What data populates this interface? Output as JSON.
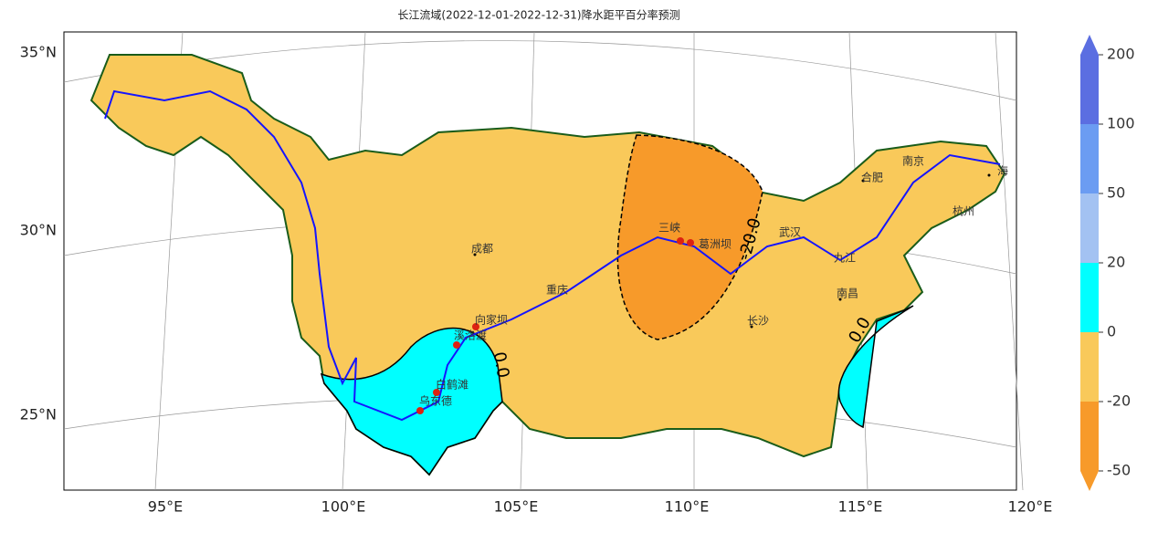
{
  "title": "长江流域(2022-12-01-2022-12-31)降水距平百分率预测",
  "lon_ticks": [
    "95°E",
    "100°E",
    "105°E",
    "110°E",
    "115°E",
    "120°E"
  ],
  "lat_ticks": [
    "35°N",
    "30°N",
    "25°N"
  ],
  "colorbar": {
    "ticks": [
      200,
      100,
      50,
      20,
      0,
      -20,
      -50
    ],
    "colors": [
      "#5b6ee1",
      "#6b9cf2",
      "#a3c2f2",
      "#00ffff",
      "#f9c95a",
      "#f79a2a"
    ]
  },
  "contour_labels": [
    "-20.0",
    "0.0",
    "0.0"
  ],
  "places": [
    "成都",
    "重庆",
    "三峡",
    "葛洲坝",
    "武汉",
    "九江",
    "南昌",
    "长沙",
    "合肥",
    "南京",
    "杭州",
    "海",
    "向家坝",
    "溪洛渡",
    "白鹤滩",
    "乌东德"
  ]
}
